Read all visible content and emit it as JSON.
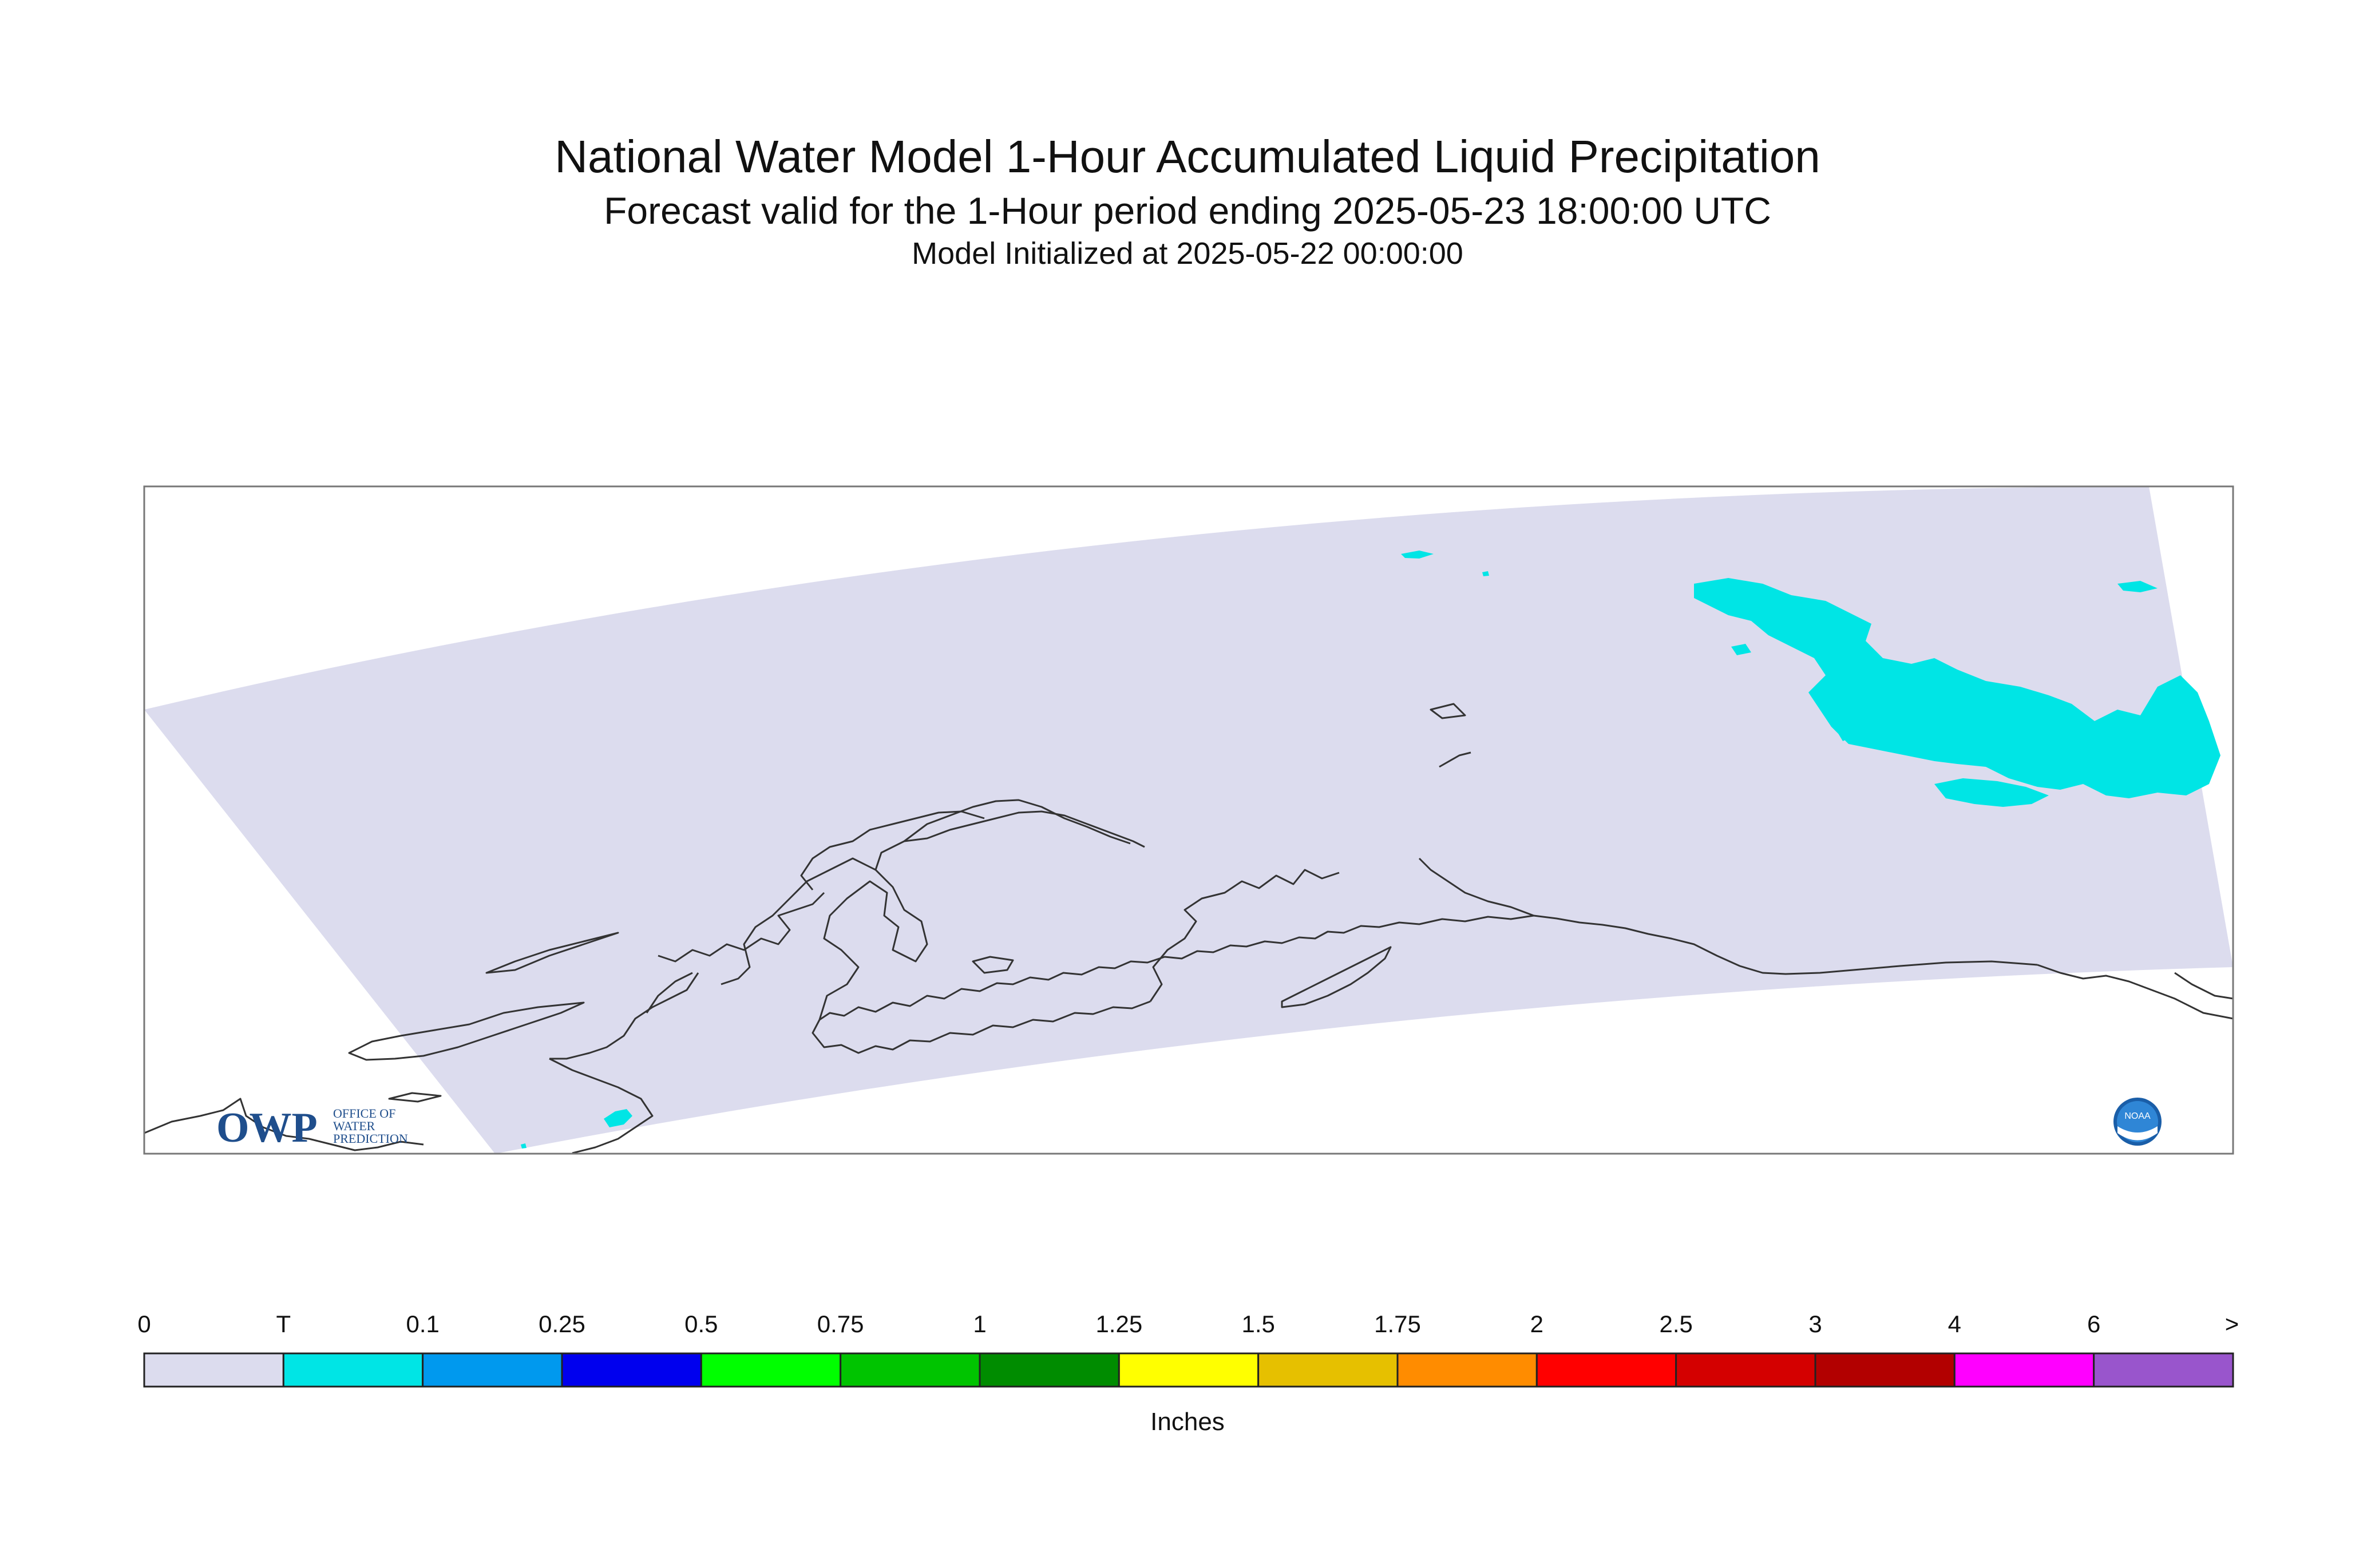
{
  "title": {
    "main": "National Water Model 1-Hour Accumulated Liquid Precipitation",
    "valid": "Forecast valid for the 1-Hour period ending 2025-05-23 18:00:00 UTC",
    "init": "Model Initialized at 2025-05-22 00:00:00"
  },
  "map": {
    "domain_fill": "#dcdcee",
    "coastline_color": "#333333",
    "precip_color": "#00e5e5",
    "precip_category": "T"
  },
  "logos": {
    "owp": {
      "letters": "OWP",
      "text_lines": [
        "OFFICE OF",
        "WATER",
        "PREDICTION"
      ]
    },
    "noaa": {
      "letters": "NOAA"
    }
  },
  "legend": {
    "units": "Inches",
    "tick_labels": [
      "0",
      "T",
      "0.1",
      "0.25",
      "0.5",
      "0.75",
      "1",
      "1.25",
      "1.5",
      "1.75",
      "2",
      "2.5",
      "3",
      "4",
      "6",
      ">"
    ],
    "colors": [
      "#dcdcee",
      "#00e5e5",
      "#0099ee",
      "#0000ee",
      "#00ff00",
      "#00c400",
      "#008c00",
      "#ffff00",
      "#e6c000",
      "#ff8c00",
      "#ff0000",
      "#d40000",
      "#b20000",
      "#ff00ff",
      "#9955cc"
    ]
  }
}
